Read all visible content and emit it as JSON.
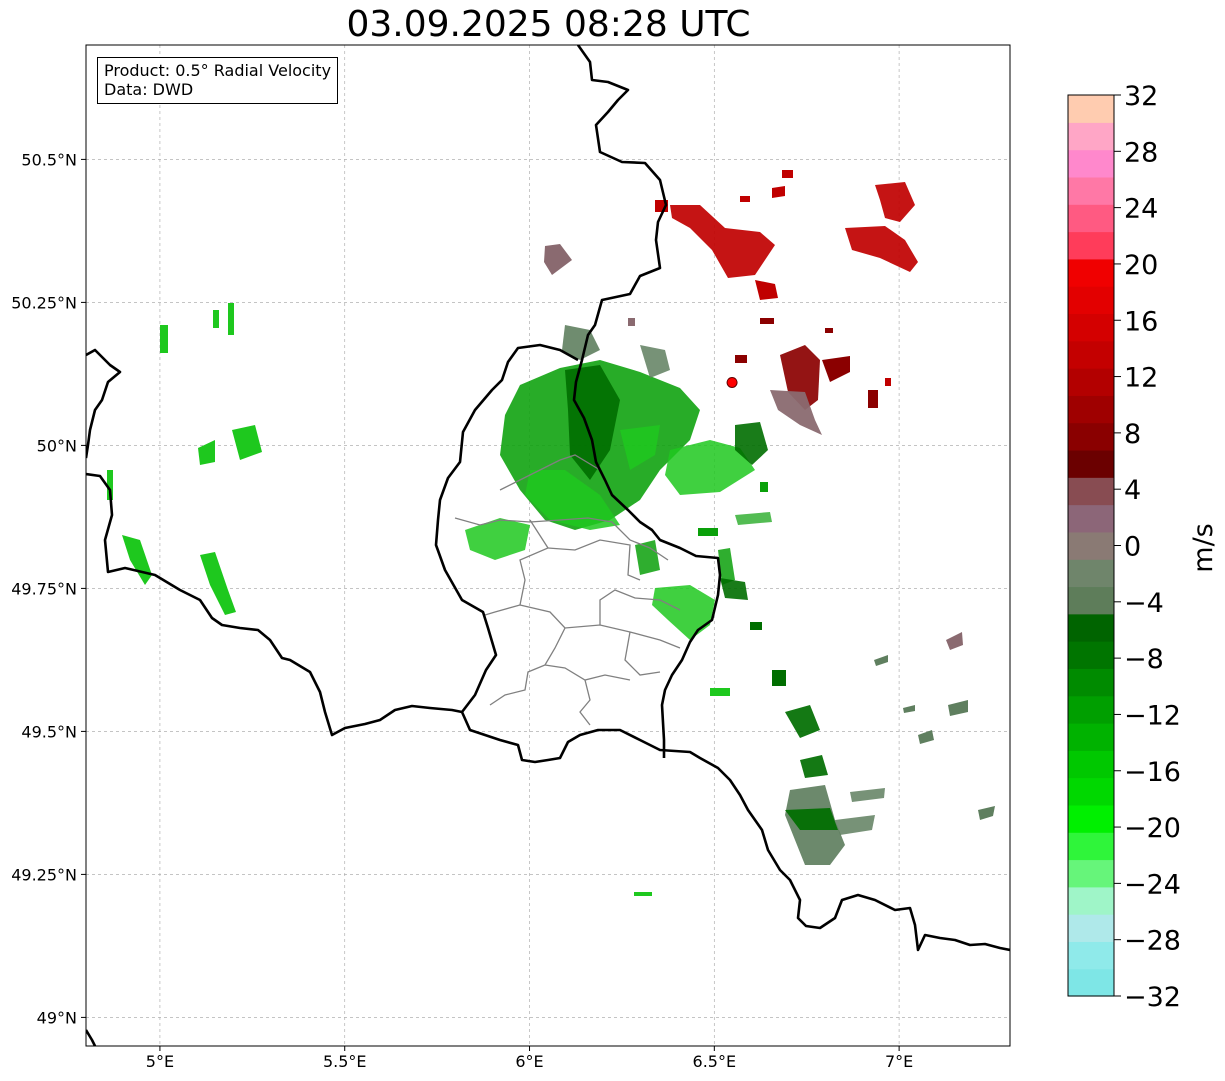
{
  "title": "03.09.2025 08:28 UTC",
  "info": {
    "product": "Product: 0.5° Radial Velocity",
    "data": "Data: DWD"
  },
  "map": {
    "lon_range": [
      4.8,
      7.3
    ],
    "lat_range": [
      48.95,
      50.7
    ],
    "lon_ticks": [
      {
        "value": 5.0,
        "label": "5°E"
      },
      {
        "value": 5.5,
        "label": "5.5°E"
      },
      {
        "value": 6.0,
        "label": "6°E"
      },
      {
        "value": 6.5,
        "label": "6.5°E"
      },
      {
        "value": 7.0,
        "label": "7°E"
      }
    ],
    "lat_ticks": [
      {
        "value": 50.5,
        "label": "50.5°N"
      },
      {
        "value": 50.25,
        "label": "50.25°N"
      },
      {
        "value": 50.0,
        "label": "50°N"
      },
      {
        "value": 49.75,
        "label": "49.75°N"
      },
      {
        "value": 49.5,
        "label": "49.5°N"
      },
      {
        "value": 49.25,
        "label": "49.25°N"
      },
      {
        "value": 49.0,
        "label": "49°N"
      }
    ],
    "grid": true,
    "radar_site": {
      "lon": 6.548,
      "lat": 50.11,
      "color": "#ff0000"
    }
  },
  "colorbar": {
    "label": "m/s",
    "min": -32,
    "max": 32,
    "tick_values": [
      32,
      28,
      24,
      20,
      16,
      12,
      8,
      4,
      0,
      -4,
      -8,
      -12,
      -16,
      -20,
      -24,
      -28,
      -32
    ],
    "tick_labels": [
      "32",
      "28",
      "24",
      "20",
      "16",
      "12",
      "8",
      "4",
      "0",
      "−4",
      "−8",
      "−12",
      "−16",
      "−20",
      "−24",
      "−28",
      "−32"
    ],
    "colors": [
      "#7ee6e6",
      "#8feaea",
      "#afe9ea",
      "#9ff5c8",
      "#66f57a",
      "#2ff53a",
      "#00f000",
      "#00d800",
      "#00c800",
      "#00b200",
      "#009f00",
      "#008b00",
      "#007500",
      "#006400",
      "#5e7d5a",
      "#6f856b",
      "#8a7a74",
      "#8c6678",
      "#884c52",
      "#6b0000",
      "#8a0000",
      "#9f0000",
      "#b30000",
      "#c40000",
      "#d40000",
      "#e30000",
      "#f00000",
      "#ff3c5a",
      "#ff5a82",
      "#ff78a6",
      "#ff88cc",
      "#ffa6c6",
      "#ffccb0"
    ]
  },
  "echo_colors": {
    "green_bright": "#1ec81e",
    "green": "#0aa00a",
    "green_dark": "#006e00",
    "gray_green": "#5f7f5f",
    "gray_pink": "#8a6a70",
    "dark_red": "#8b0000",
    "red": "#c00000"
  }
}
